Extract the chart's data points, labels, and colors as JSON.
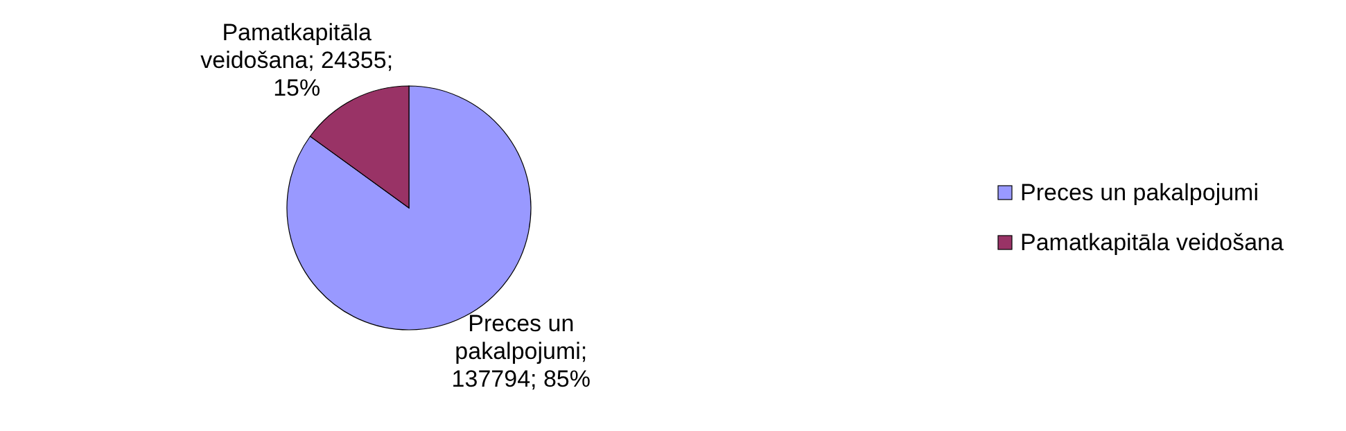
{
  "chart_data": {
    "type": "pie",
    "categories": [
      "Preces un pakalpojumi",
      "Pamatkapitāla veidošana"
    ],
    "values": [
      137794,
      24355
    ],
    "colors": [
      "#9999ff",
      "#993366"
    ],
    "value_labels": [
      "Preces un pakalpojumi; 137794; 85%",
      "Pamatkapitāla veidošana; 24355; 15%"
    ],
    "legend": "right"
  }
}
